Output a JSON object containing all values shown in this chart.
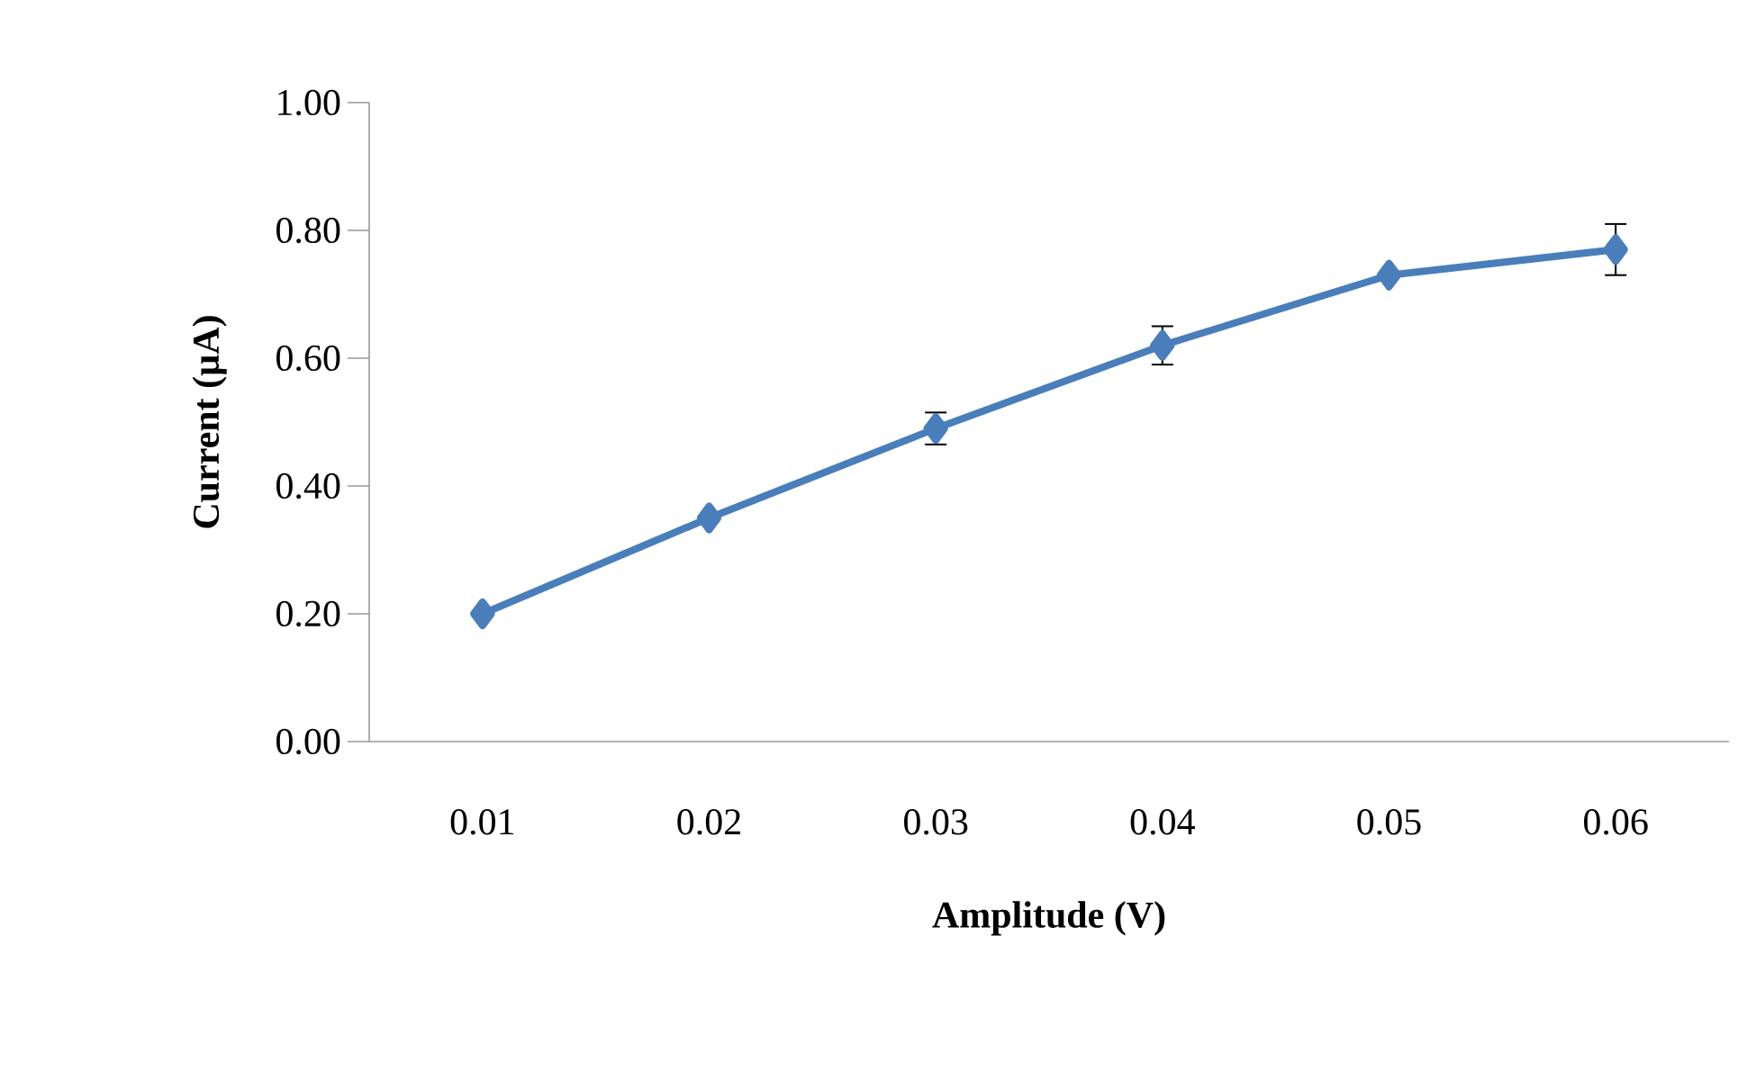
{
  "chart_data": {
    "type": "line",
    "xlabel": "Amplitude (V)",
    "ylabel": "Current (µA)",
    "categories": [
      "0.01",
      "0.02",
      "0.03",
      "0.04",
      "0.05",
      "0.06"
    ],
    "series": [
      {
        "color": "#4a7ebb",
        "values": [
          0.2,
          0.35,
          0.49,
          0.62,
          0.73,
          0.77
        ],
        "errors": [
          null,
          null,
          0.025,
          0.03,
          null,
          0.04
        ]
      }
    ],
    "ylim": [
      0,
      1
    ],
    "yticks": [
      {
        "value": 0,
        "label": "0.00"
      },
      {
        "value": 0.2,
        "label": "0.20"
      },
      {
        "value": 0.4,
        "label": "0.40"
      },
      {
        "value": 0.6,
        "label": "0.60"
      },
      {
        "value": 0.8,
        "label": "0.80"
      },
      {
        "value": 1,
        "label": "1.00"
      }
    ],
    "marker": "diamond",
    "line_style": "solid"
  }
}
